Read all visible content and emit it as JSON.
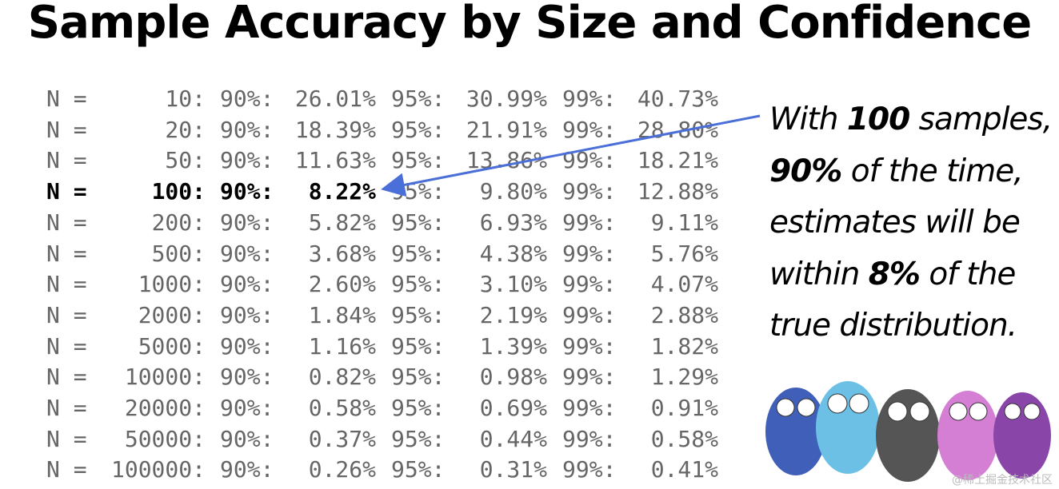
{
  "header": {
    "title": "Sample Accuracy by Size and Confidence"
  },
  "table": {
    "labels": {
      "n": "N =",
      "c90": "90%:",
      "c95": "95%:",
      "c99": "99%:"
    },
    "highlight_row": 3,
    "rows": [
      {
        "n": "10:",
        "p90": "26.01%",
        "p95": "30.99%",
        "p99": "40.73%"
      },
      {
        "n": "20:",
        "p90": "18.39%",
        "p95": "21.91%",
        "p99": "28.80%"
      },
      {
        "n": "50:",
        "p90": "11.63%",
        "p95": "13.86%",
        "p99": "18.21%"
      },
      {
        "n": "100:",
        "p90": "8.22%",
        "p95": "9.80%",
        "p99": "12.88%"
      },
      {
        "n": "200:",
        "p90": "5.82%",
        "p95": "6.93%",
        "p99": "9.11%"
      },
      {
        "n": "500:",
        "p90": "3.68%",
        "p95": "4.38%",
        "p99": "5.76%"
      },
      {
        "n": "1000:",
        "p90": "2.60%",
        "p95": "3.10%",
        "p99": "4.07%"
      },
      {
        "n": "2000:",
        "p90": "1.84%",
        "p95": "2.19%",
        "p99": "2.88%"
      },
      {
        "n": "5000:",
        "p90": "1.16%",
        "p95": "1.39%",
        "p99": "1.82%"
      },
      {
        "n": "10000:",
        "p90": "0.82%",
        "p95": "0.98%",
        "p99": "1.29%"
      },
      {
        "n": "20000:",
        "p90": "0.58%",
        "p95": "0.69%",
        "p99": "0.91%"
      },
      {
        "n": "50000:",
        "p90": "0.37%",
        "p95": "0.44%",
        "p99": "0.58%"
      },
      {
        "n": "100000:",
        "p90": "0.26%",
        "p95": "0.31%",
        "p99": "0.41%"
      }
    ]
  },
  "callout": {
    "lines": [
      [
        {
          "text": "With "
        },
        {
          "text": "100",
          "bold": true
        },
        {
          "text": " samples,"
        }
      ],
      [
        {
          "text": "90%",
          "bold": true
        },
        {
          "text": " of the time,"
        }
      ],
      [
        {
          "text": "estimates will be"
        }
      ],
      [
        {
          "text": "within "
        },
        {
          "text": "8%",
          "bold": true
        },
        {
          "text": " of the"
        }
      ],
      [
        {
          "text": "true distribution."
        }
      ]
    ]
  },
  "watermark": "@稀土掘金技术社区"
}
